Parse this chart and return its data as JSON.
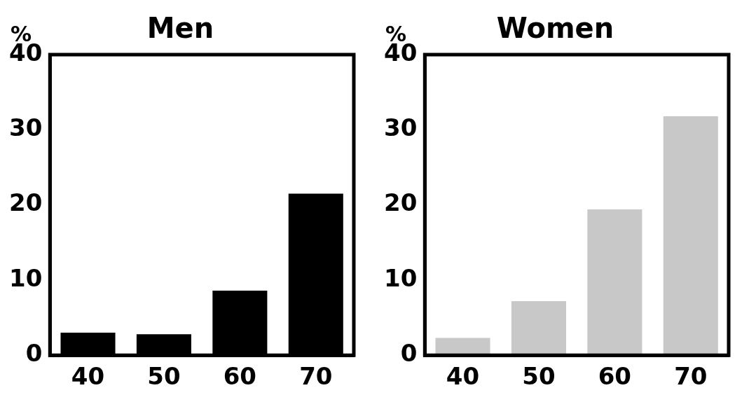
{
  "chart_data": [
    {
      "type": "bar",
      "title": "Men",
      "ylabel": "%",
      "categories": [
        "40",
        "50",
        "60",
        "70"
      ],
      "series": [
        {
          "color": "#000000",
          "values": [
            3.0,
            2.8,
            8.6,
            21.5
          ]
        }
      ],
      "ylim": [
        0,
        40
      ],
      "yticks": [
        0,
        10,
        20,
        30,
        40
      ],
      "grid": false,
      "legend": false
    },
    {
      "type": "bar",
      "title": "Women",
      "ylabel": "%",
      "categories": [
        "40",
        "50",
        "60",
        "70"
      ],
      "series": [
        {
          "color": "#c8c8c8",
          "values": [
            2.3,
            7.2,
            19.4,
            31.8
          ]
        }
      ],
      "ylim": [
        0,
        40
      ],
      "yticks": [
        0,
        10,
        20,
        30,
        40
      ],
      "grid": false,
      "legend": false
    }
  ]
}
